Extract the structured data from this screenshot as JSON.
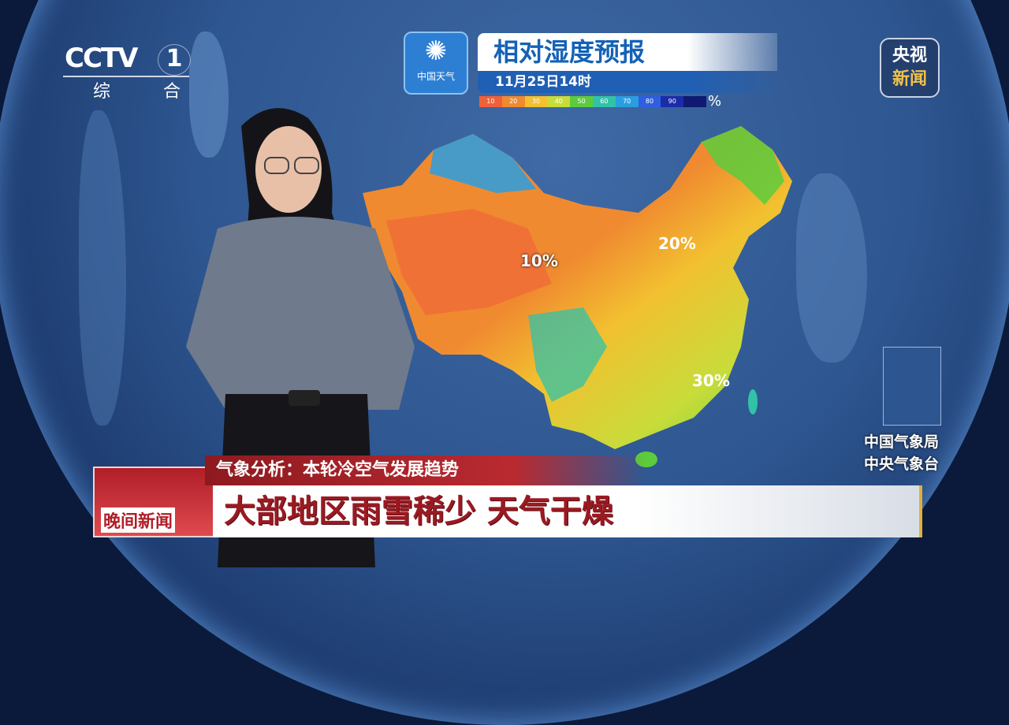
{
  "channel": {
    "logo": "CCTV",
    "number": "1",
    "name": "综 合"
  },
  "forecast_logo": {
    "icon": "swirl-icon",
    "text": "中国天气"
  },
  "forecast": {
    "title": "相对湿度预报",
    "datetime": "11月25日14时"
  },
  "legend": {
    "ticks": [
      "10",
      "20",
      "30",
      "40",
      "50",
      "60",
      "70",
      "80",
      "90"
    ],
    "unit": "%",
    "colors": [
      "#f0603a",
      "#f08a30",
      "#f2c030",
      "#c8dc3a",
      "#5ccc3c",
      "#32c2a8",
      "#2a9ee0",
      "#2f5fe0",
      "#1a2da8",
      "#101a70"
    ]
  },
  "corner_badge": {
    "line1": "央视",
    "line2": "新闻",
    "accent": "#f0c24a"
  },
  "map_labels": [
    "10%",
    "20%",
    "30%"
  ],
  "agency": {
    "line1": "中国气象局",
    "line2": "中央气象台"
  },
  "program": {
    "name": "晚间新闻"
  },
  "lower_third": {
    "subtitle": "气象分析：本轮冷空气发展趋势",
    "headline": "大部地区雨雪稀少 天气干燥",
    "accent": "#9b1a22"
  }
}
